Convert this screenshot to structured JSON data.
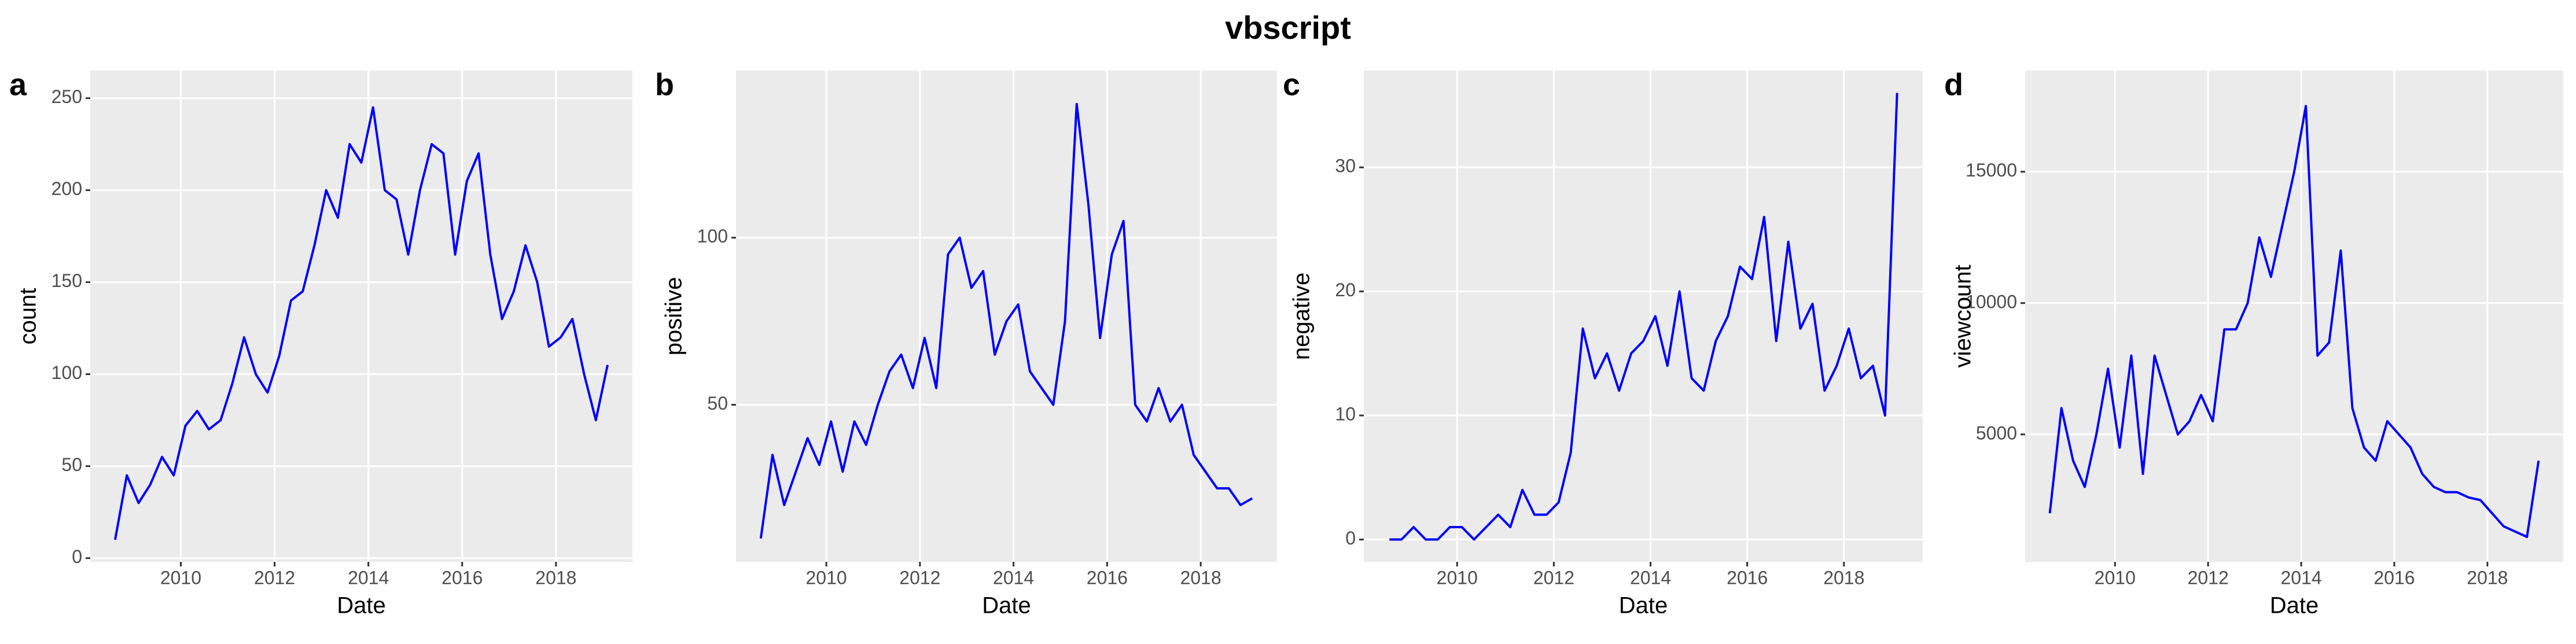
{
  "title": "vbscript",
  "chart_data": [
    {
      "type": "line",
      "label": "a",
      "x_label": "Date",
      "y_label": "count",
      "grid": true,
      "xlim": [
        2008.07,
        2019.63
      ],
      "xticks": [
        2010,
        2012,
        2014,
        2016,
        2018
      ],
      "ylim": [
        -2,
        265
      ],
      "yticks": [
        0,
        50,
        100,
        150,
        200,
        250
      ],
      "x": [
        2008.6,
        2008.85,
        2009.1,
        2009.35,
        2009.6,
        2009.85,
        2010.1,
        2010.35,
        2010.6,
        2010.85,
        2011.1,
        2011.35,
        2011.6,
        2011.85,
        2012.1,
        2012.35,
        2012.6,
        2012.85,
        2013.1,
        2013.35,
        2013.6,
        2013.85,
        2014.1,
        2014.35,
        2014.6,
        2014.85,
        2015.1,
        2015.35,
        2015.6,
        2015.85,
        2016.1,
        2016.35,
        2016.6,
        2016.85,
        2017.1,
        2017.35,
        2017.6,
        2017.85,
        2018.1,
        2018.35,
        2018.6,
        2018.85,
        2019.1
      ],
      "series": [
        {
          "color": "#0000ff",
          "values": [
            10,
            45,
            30,
            40,
            55,
            45,
            72,
            80,
            70,
            75,
            95,
            120,
            100,
            90,
            110,
            140,
            145,
            170,
            200,
            185,
            225,
            215,
            245,
            200,
            195,
            165,
            200,
            225,
            220,
            165,
            205,
            220,
            165,
            130,
            145,
            170,
            150,
            115,
            120,
            130,
            100,
            75,
            105
          ]
        }
      ]
    },
    {
      "type": "line",
      "label": "b",
      "x_label": "Date",
      "y_label": "positive",
      "grid": true,
      "xlim": [
        2008.07,
        2019.63
      ],
      "xticks": [
        2010,
        2012,
        2014,
        2016,
        2018
      ],
      "ylim": [
        3,
        150
      ],
      "yticks": [
        50,
        100
      ],
      "x": [
        2008.6,
        2008.85,
        2009.1,
        2009.35,
        2009.6,
        2009.85,
        2010.1,
        2010.35,
        2010.6,
        2010.85,
        2011.1,
        2011.35,
        2011.6,
        2011.85,
        2012.1,
        2012.35,
        2012.6,
        2012.85,
        2013.1,
        2013.35,
        2013.6,
        2013.85,
        2014.1,
        2014.35,
        2014.6,
        2014.85,
        2015.1,
        2015.35,
        2015.6,
        2015.85,
        2016.1,
        2016.35,
        2016.6,
        2016.85,
        2017.1,
        2017.35,
        2017.6,
        2017.85,
        2018.1,
        2018.35,
        2018.6,
        2018.85,
        2019.1
      ],
      "series": [
        {
          "color": "#0000ff",
          "values": [
            10,
            35,
            20,
            30,
            40,
            32,
            45,
            30,
            45,
            38,
            50,
            60,
            65,
            55,
            70,
            55,
            95,
            100,
            85,
            90,
            65,
            75,
            80,
            60,
            55,
            50,
            75,
            140,
            110,
            70,
            95,
            105,
            50,
            45,
            55,
            45,
            50,
            35,
            30,
            25,
            25,
            20,
            22
          ]
        }
      ]
    },
    {
      "type": "line",
      "label": "c",
      "x_label": "Date",
      "y_label": "negative",
      "grid": true,
      "xlim": [
        2008.07,
        2019.63
      ],
      "xticks": [
        2010,
        2012,
        2014,
        2016,
        2018
      ],
      "ylim": [
        -1.8,
        37.8
      ],
      "yticks": [
        0,
        10,
        20,
        30
      ],
      "x": [
        2008.6,
        2008.85,
        2009.1,
        2009.35,
        2009.6,
        2009.85,
        2010.1,
        2010.35,
        2010.6,
        2010.85,
        2011.1,
        2011.35,
        2011.6,
        2011.85,
        2012.1,
        2012.35,
        2012.6,
        2012.85,
        2013.1,
        2013.35,
        2013.6,
        2013.85,
        2014.1,
        2014.35,
        2014.6,
        2014.85,
        2015.1,
        2015.35,
        2015.6,
        2015.85,
        2016.1,
        2016.35,
        2016.6,
        2016.85,
        2017.1,
        2017.35,
        2017.6,
        2017.85,
        2018.1,
        2018.35,
        2018.6,
        2018.85,
        2019.1
      ],
      "series": [
        {
          "color": "#0000ff",
          "values": [
            0,
            0,
            1,
            0,
            0,
            1,
            1,
            0,
            1,
            2,
            1,
            4,
            2,
            2,
            3,
            7,
            17,
            13,
            15,
            12,
            15,
            16,
            18,
            14,
            20,
            13,
            12,
            16,
            18,
            22,
            21,
            26,
            16,
            24,
            17,
            19,
            12,
            14,
            17,
            13,
            14,
            10,
            36
          ]
        }
      ]
    },
    {
      "type": "line",
      "label": "d",
      "x_label": "Date",
      "y_label": "viewcount",
      "grid": true,
      "xlim": [
        2008.07,
        2019.63
      ],
      "xticks": [
        2010,
        2012,
        2014,
        2016,
        2018
      ],
      "ylim": [
        150,
        18850
      ],
      "yticks": [
        5000,
        10000,
        15000
      ],
      "x": [
        2008.6,
        2008.85,
        2009.1,
        2009.35,
        2009.6,
        2009.85,
        2010.1,
        2010.35,
        2010.6,
        2010.85,
        2011.1,
        2011.35,
        2011.6,
        2011.85,
        2012.1,
        2012.35,
        2012.6,
        2012.85,
        2013.1,
        2013.35,
        2013.6,
        2013.85,
        2014.1,
        2014.35,
        2014.6,
        2014.85,
        2015.1,
        2015.35,
        2015.6,
        2015.85,
        2016.1,
        2016.35,
        2016.6,
        2016.85,
        2017.1,
        2017.35,
        2017.6,
        2017.85,
        2018.1,
        2018.35,
        2018.6,
        2018.85,
        2019.1
      ],
      "series": [
        {
          "color": "#0000ff",
          "values": [
            2000,
            6000,
            4000,
            3000,
            5000,
            7500,
            4500,
            8000,
            3500,
            8000,
            6500,
            5000,
            5500,
            6500,
            5500,
            9000,
            9000,
            10000,
            12500,
            11000,
            13000,
            15000,
            17500,
            8000,
            8500,
            12000,
            6000,
            4500,
            4000,
            5500,
            5000,
            4500,
            3500,
            3000,
            2800,
            2800,
            2600,
            2500,
            2000,
            1500,
            1300,
            1100,
            4000
          ]
        }
      ]
    }
  ]
}
